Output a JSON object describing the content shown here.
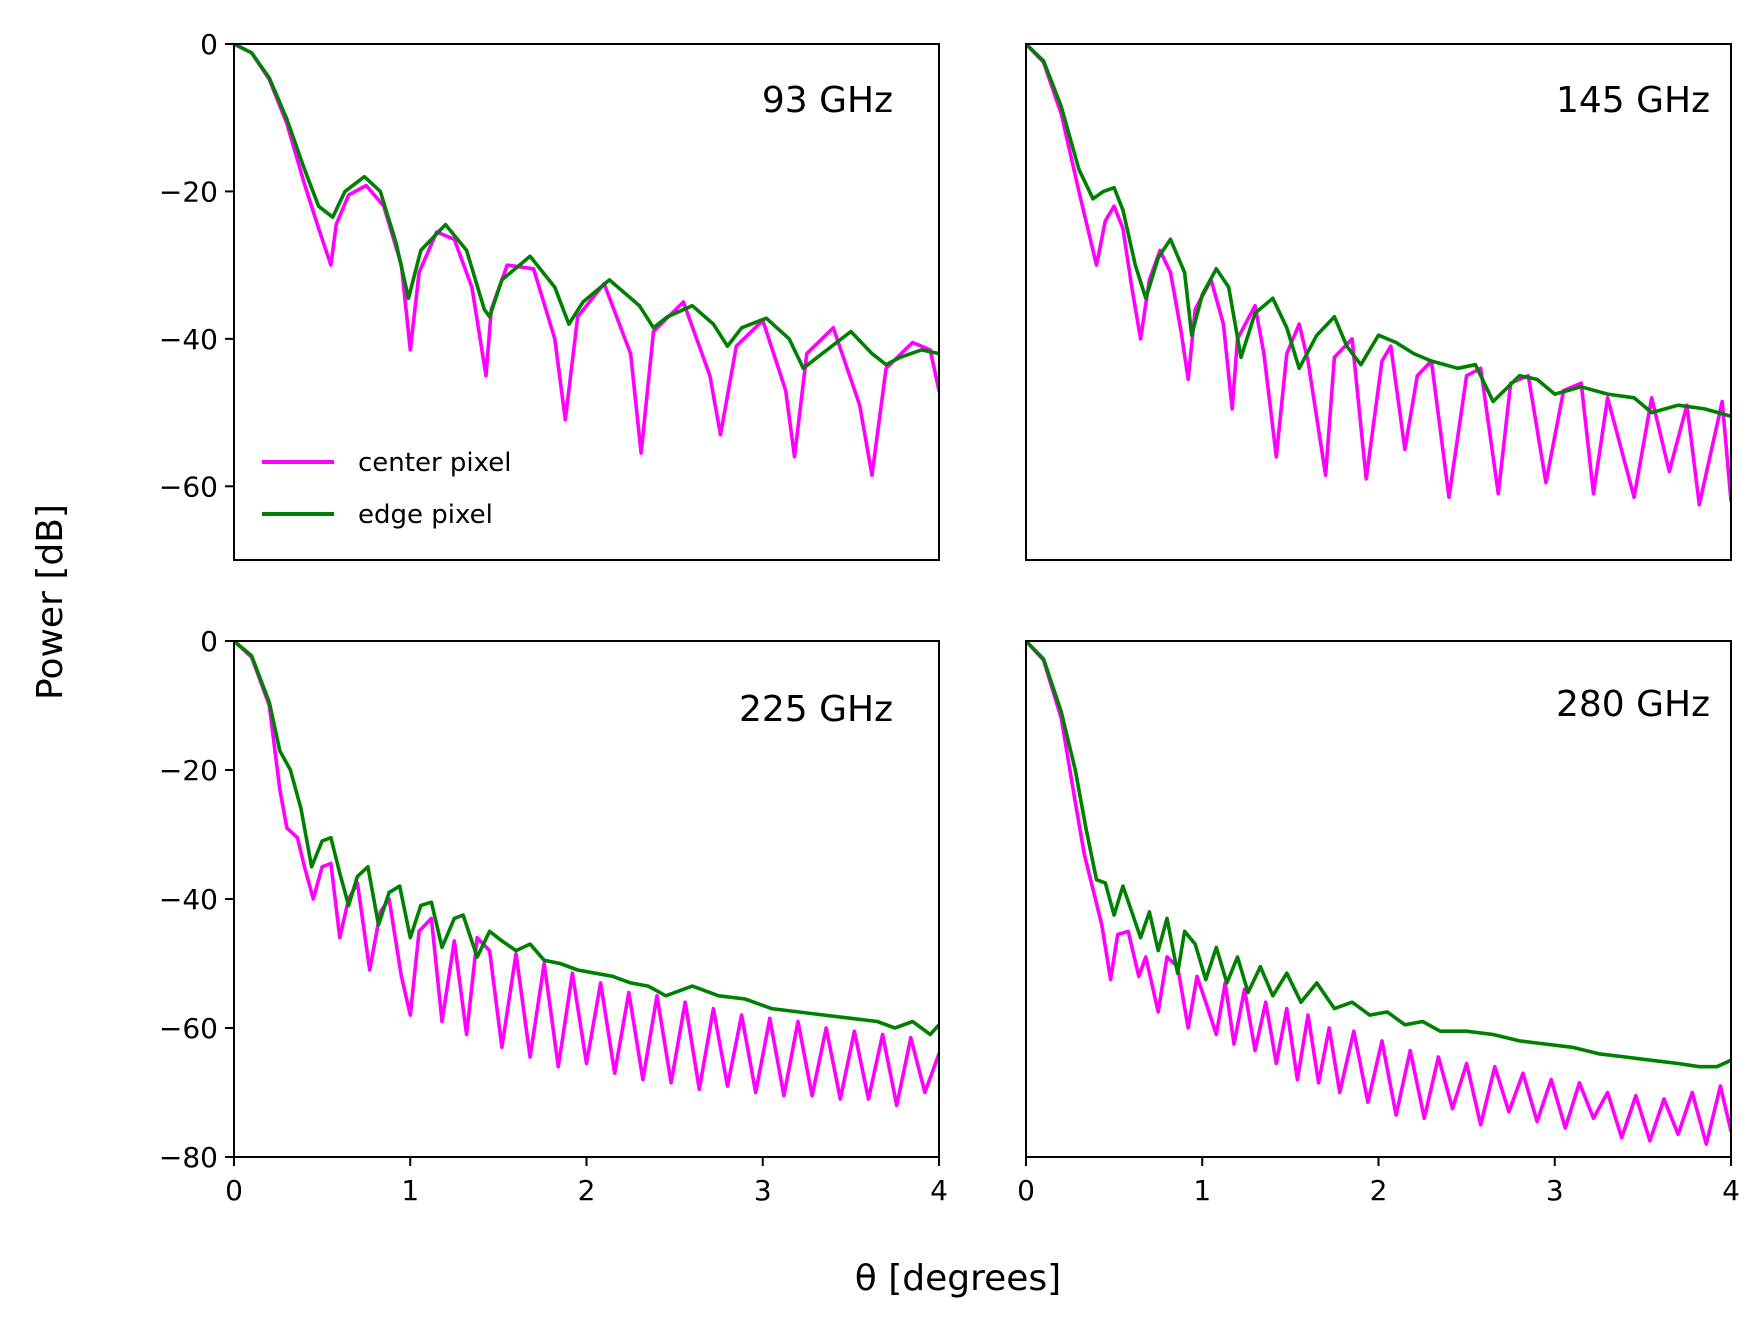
{
  "chart_data": {
    "type": "line",
    "xlabel": "θ [degrees]",
    "ylabel": "Power [dB]",
    "xlim": [
      0,
      4
    ],
    "xticks": [
      0,
      1,
      2,
      3,
      4
    ],
    "legend": {
      "placement": "lower-left of first panel",
      "entries": [
        {
          "name": "center pixel",
          "color": "#ff00ff"
        },
        {
          "name": "edge pixel",
          "color": "#008000"
        }
      ]
    },
    "panels": [
      {
        "title": "93 GHz",
        "ylim": [
          -70,
          0
        ],
        "yticks": [
          0,
          -20,
          -40,
          -60
        ],
        "series": [
          {
            "name": "center pixel",
            "color": "#ff00ff",
            "x": [
              0,
              0.1,
              0.2,
              0.3,
              0.4,
              0.48,
              0.55,
              0.58,
              0.65,
              0.75,
              0.85,
              0.95,
              1.0,
              1.05,
              1.15,
              1.25,
              1.35,
              1.43,
              1.46,
              1.55,
              1.7,
              1.82,
              1.88,
              1.95,
              2.1,
              2.25,
              2.31,
              2.38,
              2.55,
              2.7,
              2.76,
              2.85,
              3.0,
              3.13,
              3.18,
              3.25,
              3.4,
              3.55,
              3.62,
              3.7,
              3.85,
              3.95,
              4.0
            ],
            "y": [
              0,
              -1.2,
              -4.8,
              -10.8,
              -19.0,
              -25.0,
              -30.0,
              -24.5,
              -20.5,
              -19.2,
              -22.0,
              -30.0,
              -41.5,
              -31.0,
              -25.5,
              -26.5,
              -33.0,
              -45.0,
              -36.0,
              -30.0,
              -30.5,
              -40.0,
              -51.0,
              -37.0,
              -32.5,
              -42.0,
              -55.5,
              -39.0,
              -35.0,
              -45.0,
              -53.0,
              -41.0,
              -37.5,
              -47.0,
              -56.0,
              -42.0,
              -38.5,
              -49.0,
              -58.5,
              -44.0,
              -40.5,
              -41.5,
              -47.0
            ]
          },
          {
            "name": "edge pixel",
            "color": "#008000",
            "x": [
              0,
              0.1,
              0.2,
              0.3,
              0.4,
              0.48,
              0.56,
              0.63,
              0.74,
              0.83,
              0.92,
              0.99,
              1.06,
              1.2,
              1.32,
              1.42,
              1.45,
              1.52,
              1.68,
              1.82,
              1.9,
              1.98,
              2.13,
              2.3,
              2.38,
              2.46,
              2.6,
              2.72,
              2.8,
              2.88,
              3.02,
              3.15,
              3.23,
              3.31,
              3.5,
              3.62,
              3.7,
              3.78,
              3.9,
              4.0
            ],
            "y": [
              0,
              -1.2,
              -4.6,
              -10.2,
              -17.0,
              -22.0,
              -23.5,
              -20.0,
              -18.0,
              -20.0,
              -27.0,
              -34.5,
              -28.0,
              -24.5,
              -28.0,
              -36.0,
              -37.0,
              -32.0,
              -28.8,
              -33.0,
              -38.0,
              -35.0,
              -32.0,
              -35.5,
              -38.5,
              -37.0,
              -35.5,
              -38.0,
              -41.0,
              -38.5,
              -37.2,
              -40.0,
              -44.0,
              -42.5,
              -39.0,
              -42.0,
              -43.5,
              -42.5,
              -41.5,
              -42.0
            ]
          }
        ]
      },
      {
        "title": "145 GHz",
        "ylim": [
          -70,
          0
        ],
        "yticks": [],
        "series": [
          {
            "name": "center pixel",
            "color": "#ff00ff",
            "x": [
              0,
              0.1,
              0.2,
              0.3,
              0.36,
              0.4,
              0.45,
              0.5,
              0.55,
              0.6,
              0.65,
              0.7,
              0.76,
              0.82,
              0.88,
              0.92,
              0.96,
              1.05,
              1.12,
              1.17,
              1.2,
              1.3,
              1.35,
              1.42,
              1.48,
              1.55,
              1.6,
              1.7,
              1.75,
              1.85,
              1.93,
              2.02,
              2.07,
              2.15,
              2.22,
              2.3,
              2.4,
              2.5,
              2.58,
              2.68,
              2.75,
              2.85,
              2.95,
              3.05,
              3.15,
              3.22,
              3.3,
              3.45,
              3.55,
              3.65,
              3.75,
              3.82,
              3.95,
              4.0
            ],
            "y": [
              0,
              -2.5,
              -9.5,
              -20.0,
              -26.0,
              -30.0,
              -24.0,
              -22.0,
              -25.0,
              -33.0,
              -40.0,
              -32.0,
              -28.0,
              -31.0,
              -39.0,
              -45.5,
              -36.0,
              -32.0,
              -38.0,
              -49.5,
              -40.0,
              -35.5,
              -42.0,
              -56.0,
              -42.0,
              -38.0,
              -43.0,
              -58.5,
              -42.5,
              -40.0,
              -59.0,
              -43.0,
              -41.0,
              -55.0,
              -45.0,
              -43.0,
              -61.5,
              -45.0,
              -44.0,
              -61.0,
              -46.0,
              -45.0,
              -59.5,
              -47.0,
              -46.0,
              -61.0,
              -48.0,
              -61.5,
              -48.0,
              -58.0,
              -49.0,
              -62.5,
              -48.5,
              -62.0
            ]
          },
          {
            "name": "edge pixel",
            "color": "#008000",
            "x": [
              0,
              0.1,
              0.2,
              0.3,
              0.38,
              0.44,
              0.5,
              0.55,
              0.62,
              0.68,
              0.75,
              0.82,
              0.9,
              0.94,
              1.0,
              1.08,
              1.15,
              1.22,
              1.3,
              1.4,
              1.48,
              1.55,
              1.65,
              1.75,
              1.82,
              1.9,
              2.0,
              2.1,
              2.2,
              2.3,
              2.45,
              2.55,
              2.65,
              2.8,
              2.9,
              3.0,
              3.15,
              3.3,
              3.45,
              3.55,
              3.7,
              3.85,
              4.0
            ],
            "y": [
              0,
              -2.3,
              -8.5,
              -17.0,
              -21.0,
              -20.0,
              -19.5,
              -22.5,
              -30.0,
              -34.5,
              -29.0,
              -26.5,
              -31.0,
              -39.5,
              -34.0,
              -30.5,
              -33.0,
              -42.5,
              -36.5,
              -34.5,
              -38.5,
              -44.0,
              -39.5,
              -37.0,
              -41.0,
              -43.5,
              -39.5,
              -40.5,
              -42.0,
              -43.0,
              -44.0,
              -43.5,
              -48.5,
              -45.0,
              -45.5,
              -47.5,
              -46.5,
              -47.5,
              -48.0,
              -50.0,
              -49.0,
              -49.5,
              -50.5
            ]
          }
        ]
      },
      {
        "title": "225 GHz",
        "ylim": [
          -80,
          0
        ],
        "yticks": [
          0,
          -20,
          -40,
          -60,
          -80
        ],
        "series": [
          {
            "name": "center pixel",
            "color": "#ff00ff",
            "x": [
              0,
              0.1,
              0.2,
              0.26,
              0.3,
              0.36,
              0.4,
              0.45,
              0.5,
              0.55,
              0.6,
              0.65,
              0.7,
              0.77,
              0.83,
              0.88,
              0.95,
              1.0,
              1.05,
              1.12,
              1.18,
              1.25,
              1.32,
              1.38,
              1.45,
              1.52,
              1.6,
              1.68,
              1.76,
              1.84,
              1.92,
              2.0,
              2.08,
              2.16,
              2.24,
              2.32,
              2.4,
              2.48,
              2.56,
              2.64,
              2.72,
              2.8,
              2.88,
              2.96,
              3.04,
              3.12,
              3.2,
              3.28,
              3.36,
              3.44,
              3.52,
              3.6,
              3.68,
              3.76,
              3.84,
              3.92,
              4.0
            ],
            "y": [
              0,
              -2.5,
              -10.0,
              -23.0,
              -29.0,
              -30.5,
              -35.0,
              -40.0,
              -35.0,
              -34.5,
              -46.0,
              -40.0,
              -37.5,
              -51.0,
              -42.0,
              -40.0,
              -52.0,
              -58.0,
              -45.0,
              -43.0,
              -59.0,
              -46.5,
              -61.0,
              -46.0,
              -48.0,
              -63.0,
              -48.5,
              -64.5,
              -50.0,
              -66.0,
              -51.5,
              -65.5,
              -53.0,
              -67.0,
              -54.5,
              -68.0,
              -55.0,
              -68.5,
              -56.0,
              -69.5,
              -57.0,
              -69.0,
              -58.0,
              -70.0,
              -58.5,
              -70.5,
              -59.0,
              -70.5,
              -60.0,
              -71.0,
              -60.5,
              -71.0,
              -61.0,
              -72.0,
              -61.5,
              -70.0,
              -64.0
            ]
          },
          {
            "name": "edge pixel",
            "color": "#008000",
            "x": [
              0,
              0.1,
              0.2,
              0.26,
              0.32,
              0.38,
              0.44,
              0.5,
              0.55,
              0.6,
              0.65,
              0.7,
              0.76,
              0.82,
              0.88,
              0.94,
              1.0,
              1.06,
              1.12,
              1.18,
              1.25,
              1.3,
              1.38,
              1.45,
              1.52,
              1.6,
              1.68,
              1.76,
              1.85,
              1.95,
              2.05,
              2.15,
              2.25,
              2.35,
              2.45,
              2.6,
              2.75,
              2.9,
              3.05,
              3.2,
              3.35,
              3.5,
              3.65,
              3.75,
              3.85,
              3.95,
              4.0
            ],
            "y": [
              0,
              -2.3,
              -9.5,
              -17.0,
              -20.0,
              -26.0,
              -35.0,
              -31.0,
              -30.5,
              -36.0,
              -41.0,
              -36.5,
              -35.0,
              -44.0,
              -39.0,
              -38.0,
              -46.0,
              -41.0,
              -40.5,
              -47.5,
              -43.0,
              -42.5,
              -49.0,
              -45.0,
              -46.5,
              -48.0,
              -47.0,
              -49.5,
              -50.0,
              -51.0,
              -51.5,
              -52.0,
              -53.0,
              -53.5,
              -55.0,
              -53.5,
              -55.0,
              -55.5,
              -57.0,
              -57.5,
              -58.0,
              -58.5,
              -59.0,
              -60.0,
              -59.0,
              -61.0,
              -59.5
            ]
          }
        ]
      },
      {
        "title": "280 GHz",
        "ylim": [
          -80,
          0
        ],
        "yticks": [],
        "series": [
          {
            "name": "center pixel",
            "color": "#ff00ff",
            "x": [
              0,
              0.1,
              0.2,
              0.28,
              0.33,
              0.38,
              0.43,
              0.48,
              0.52,
              0.58,
              0.64,
              0.68,
              0.75,
              0.8,
              0.86,
              0.92,
              0.97,
              1.02,
              1.08,
              1.13,
              1.18,
              1.24,
              1.3,
              1.36,
              1.42,
              1.48,
              1.54,
              1.6,
              1.66,
              1.72,
              1.78,
              1.86,
              1.94,
              2.02,
              2.1,
              2.18,
              2.26,
              2.34,
              2.42,
              2.5,
              2.58,
              2.66,
              2.74,
              2.82,
              2.9,
              2.98,
              3.06,
              3.14,
              3.22,
              3.3,
              3.38,
              3.46,
              3.54,
              3.62,
              3.7,
              3.78,
              3.86,
              3.94,
              4.0
            ],
            "y": [
              0,
              -3.0,
              -12.0,
              -25.0,
              -33.0,
              -38.5,
              -44.0,
              -52.5,
              -45.5,
              -45.0,
              -52.0,
              -49.0,
              -57.5,
              -49.0,
              -50.5,
              -60.0,
              -52.0,
              -56.0,
              -61.0,
              -53.0,
              -62.5,
              -54.0,
              -63.5,
              -56.0,
              -65.5,
              -57.0,
              -68.0,
              -58.0,
              -68.5,
              -60.0,
              -70.0,
              -60.5,
              -71.5,
              -62.0,
              -73.5,
              -63.5,
              -74.0,
              -64.5,
              -72.5,
              -65.5,
              -75.0,
              -66.0,
              -73.0,
              -67.0,
              -74.5,
              -68.0,
              -75.5,
              -68.5,
              -74.0,
              -70.0,
              -77.0,
              -70.5,
              -77.5,
              -71.0,
              -76.5,
              -70.0,
              -78.0,
              -69.0,
              -76.0
            ]
          },
          {
            "name": "edge pixel",
            "color": "#008000",
            "x": [
              0,
              0.1,
              0.2,
              0.28,
              0.34,
              0.4,
              0.45,
              0.5,
              0.55,
              0.6,
              0.65,
              0.7,
              0.75,
              0.8,
              0.86,
              0.9,
              0.96,
              1.02,
              1.08,
              1.14,
              1.2,
              1.26,
              1.33,
              1.4,
              1.48,
              1.56,
              1.65,
              1.75,
              1.85,
              1.95,
              2.05,
              2.15,
              2.25,
              2.35,
              2.5,
              2.65,
              2.8,
              2.95,
              3.1,
              3.25,
              3.4,
              3.55,
              3.7,
              3.82,
              3.92,
              4.0
            ],
            "y": [
              0,
              -2.8,
              -11.0,
              -20.0,
              -29.0,
              -37.0,
              -37.5,
              -42.5,
              -38.0,
              -42.0,
              -46.0,
              -42.0,
              -48.0,
              -43.0,
              -51.5,
              -45.0,
              -47.0,
              -52.5,
              -47.5,
              -53.0,
              -49.0,
              -54.5,
              -50.5,
              -55.0,
              -51.5,
              -56.0,
              -53.0,
              -57.0,
              -56.0,
              -58.0,
              -57.5,
              -59.5,
              -59.0,
              -60.5,
              -60.5,
              -61.0,
              -62.0,
              -62.5,
              -63.0,
              -64.0,
              -64.5,
              -65.0,
              -65.5,
              -66.0,
              -66.0,
              -65.0
            ]
          }
        ]
      }
    ]
  }
}
